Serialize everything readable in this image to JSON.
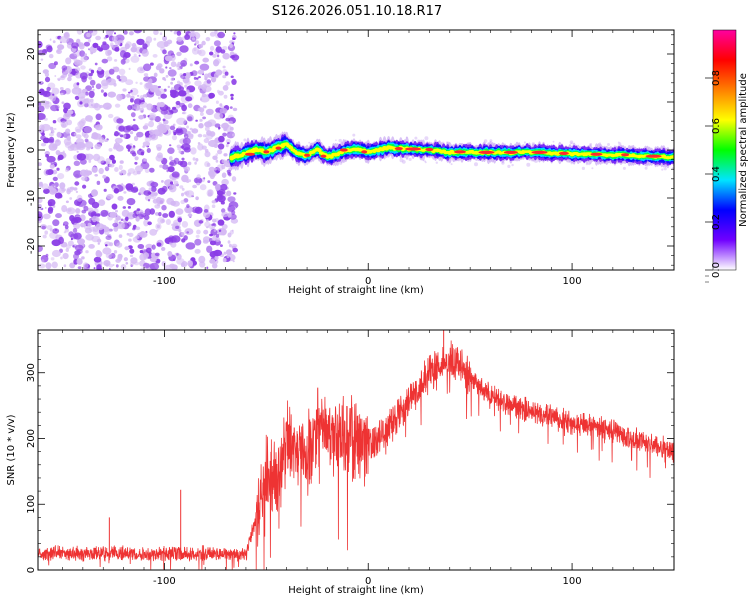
{
  "title": "S126.2026.051.10.18.R17",
  "colors": {
    "snr_line": "#ee3333",
    "noise": "#8a3ce6",
    "noise_light": "#d4b8f4",
    "axis": "#000000"
  },
  "chart_data": [
    {
      "type": "heatmap",
      "name": "spectrogram",
      "xlabel": "Height of straight line (km)",
      "ylabel": "Frequency (Hz)",
      "xlim": [
        -162,
        150
      ],
      "ylim": [
        -25,
        25
      ],
      "xticks": [
        -100,
        0,
        100
      ],
      "xtick_labels": [
        "-100",
        "0",
        "100"
      ],
      "yticks": [
        -20,
        -10,
        0,
        10,
        20
      ],
      "ytick_labels": [
        "-20",
        "-10",
        "0",
        "10",
        "20"
      ],
      "noise_region_x": [
        -162,
        -67
      ],
      "signal_onset_x": -67,
      "signal_track": {
        "x": [
          -67,
          -60,
          -55,
          -50,
          -45,
          -40,
          -35,
          -30,
          -25,
          -20,
          -15,
          -10,
          -5,
          0,
          10,
          20,
          30,
          40,
          60,
          80,
          100,
          120,
          150
        ],
        "freq_hz": [
          -1.5,
          -0.8,
          0.2,
          -0.5,
          0.5,
          1.2,
          -0.8,
          -1.2,
          0.2,
          -1.5,
          -0.8,
          0.0,
          0.2,
          -0.5,
          0.5,
          0.2,
          0.0,
          -0.5,
          -0.5,
          -0.5,
          -0.8,
          -1.0,
          -1.5
        ]
      },
      "colorbar": {
        "label": "Normalized spectral amplitude",
        "range": [
          0.0,
          1.0
        ],
        "ticks": [
          0.0,
          0.2,
          0.4,
          0.6,
          0.8
        ],
        "tick_labels": [
          "0.0",
          "0.2",
          "0.4",
          "0.6",
          "0.8"
        ],
        "stops": [
          "#ffffff",
          "#7000ff",
          "#0000ff",
          "#00e5ff",
          "#00ff00",
          "#ffff00",
          "#ff8000",
          "#ff0000",
          "#ff00a0"
        ]
      }
    },
    {
      "type": "line",
      "name": "snr",
      "xlabel": "Height of straight line (km)",
      "ylabel": "SNR (10 * v/v)",
      "xlim": [
        -162,
        150
      ],
      "ylim": [
        0,
        365
      ],
      "xticks": [
        -100,
        0,
        100
      ],
      "xtick_labels": [
        "-100",
        "0",
        "100"
      ],
      "yticks": [
        0,
        100,
        200,
        300
      ],
      "ytick_labels": [
        "0",
        "100",
        "200",
        "300"
      ],
      "envelope": {
        "x": [
          -162,
          -120,
          -90,
          -70,
          -60,
          -55,
          -50,
          -45,
          -40,
          -30,
          -25,
          -20,
          -10,
          0,
          10,
          20,
          30,
          35,
          40,
          45,
          50,
          60,
          70,
          80,
          100,
          120,
          140,
          150
        ],
        "y": [
          25,
          25,
          25,
          25,
          25,
          80,
          150,
          130,
          200,
          170,
          220,
          200,
          200,
          190,
          220,
          260,
          300,
          315,
          320,
          310,
          290,
          265,
          250,
          240,
          225,
          210,
          190,
          180
        ]
      },
      "spikes": [
        {
          "x": -127,
          "y": 80
        },
        {
          "x": -92,
          "y": 122
        },
        {
          "x": 37,
          "y": 365
        }
      ]
    }
  ]
}
